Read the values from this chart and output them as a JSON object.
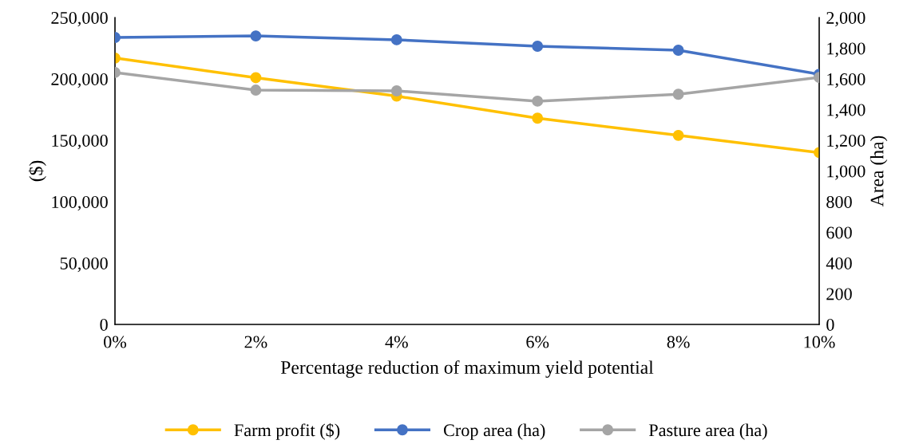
{
  "chart_data": {
    "type": "line",
    "xlabel": "Percentage reduction of maximum yield potential",
    "ylabel": "($)",
    "y2label": "Area (ha)",
    "categories": [
      "0%",
      "2%",
      "4%",
      "6%",
      "8%",
      "10%"
    ],
    "series": [
      {
        "name": "Farm profit ($)",
        "color": "#ffc000",
        "values": [
          217000,
          201000,
          186000,
          168000,
          154000,
          140000
        ]
      },
      {
        "name": "Crop area (ha)",
        "color": "#4472c4",
        "axis": "y2",
        "values": [
          1870,
          1880,
          1855,
          1813,
          1787,
          1630
        ]
      },
      {
        "name": "Pasture area (ha)",
        "color": "#a5a5a5",
        "axis": "y2",
        "values": [
          1642,
          1527,
          1522,
          1455,
          1500,
          1610
        ]
      }
    ],
    "ylim": [
      0,
      250000
    ],
    "yticks": [
      {
        "value": 0,
        "label": "0"
      },
      {
        "value": 50000,
        "label": "50,000"
      },
      {
        "value": 100000,
        "label": "100,000"
      },
      {
        "value": 150000,
        "label": "150,000"
      },
      {
        "value": 200000,
        "label": "200,000"
      },
      {
        "value": 250000,
        "label": "250,000"
      }
    ],
    "y2lim": [
      0,
      2000
    ],
    "y2ticks": [
      {
        "value": 0,
        "label": "0"
      },
      {
        "value": 200,
        "label": "200"
      },
      {
        "value": 400,
        "label": "400"
      },
      {
        "value": 600,
        "label": "600"
      },
      {
        "value": 800,
        "label": "800"
      },
      {
        "value": 1000,
        "label": "1,000"
      },
      {
        "value": 1200,
        "label": "1,200"
      },
      {
        "value": 1400,
        "label": "1,400"
      },
      {
        "value": 1600,
        "label": "1,600"
      },
      {
        "value": 1800,
        "label": "1,800"
      },
      {
        "value": 2000,
        "label": "2,000"
      }
    ],
    "grid": false,
    "legend": "bottom",
    "marker": "circle",
    "line_style": "solid"
  }
}
